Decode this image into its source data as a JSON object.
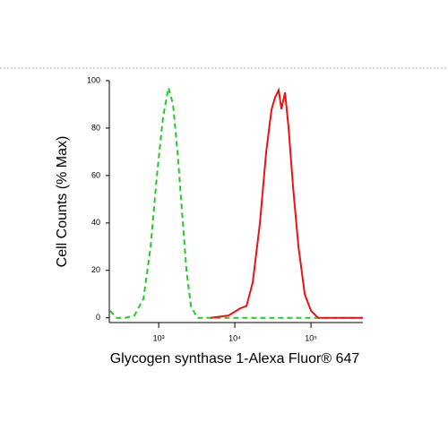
{
  "chart_data": {
    "type": "line",
    "ylabel": "Cell Counts (% Max)",
    "xlabel": "Glycogen synthase 1-Alexa Fluor® 647",
    "xscale": "log",
    "xlim": [
      225,
      480000
    ],
    "ylim": [
      -2,
      100
    ],
    "xticks": [
      {
        "value": 1000,
        "label": "10³"
      },
      {
        "value": 10000,
        "label": "10⁴"
      },
      {
        "value": 100000,
        "label": "10⁵"
      }
    ],
    "yticks": [
      0,
      20,
      40,
      60,
      80,
      100
    ],
    "series": [
      {
        "color": "#22cc22",
        "dashed": true,
        "x": [
          230,
          280,
          367,
          481,
          631,
          784,
          947,
          1145,
          1347,
          1543,
          1766,
          2022,
          2315,
          2652,
          3206,
          480000
        ],
        "values": [
          3,
          0,
          0,
          1,
          8,
          30,
          60,
          85,
          97,
          90,
          70,
          45,
          20,
          5,
          0,
          0
        ]
      },
      {
        "color": "#ee1111",
        "dashed": false,
        "x": [
          4810,
          8270,
          11770,
          14220,
          17190,
          21340,
          25820,
          30350,
          33830,
          37670,
          40890,
          45600,
          50800,
          58200,
          68400,
          82800,
          100000,
          124000,
          480000
        ],
        "values": [
          0,
          1,
          4,
          5,
          15,
          40,
          70,
          88,
          93,
          96,
          88,
          95,
          80,
          55,
          30,
          10,
          3,
          0,
          0
        ]
      }
    ]
  }
}
